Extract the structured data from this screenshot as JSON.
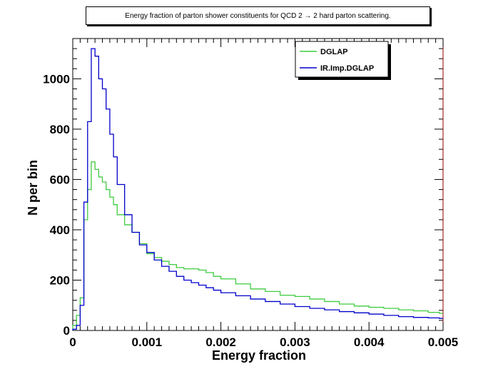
{
  "chart_data": {
    "type": "line",
    "title": "Energy fraction of parton shower constituents for QCD 2 → 2 hard parton scattering.",
    "xlabel": "Energy fraction",
    "ylabel": "N per bin",
    "xlim": [
      0,
      0.005
    ],
    "ylim": [
      0,
      1160
    ],
    "xticks": [
      "0",
      "0.001",
      "0.002",
      "0.003",
      "0.004",
      "0.005"
    ],
    "xtick_values": [
      0,
      0.001,
      0.002,
      0.003,
      0.004,
      0.005
    ],
    "yticks": [
      "0",
      "200",
      "400",
      "600",
      "800",
      "1000"
    ],
    "ytick_values": [
      0,
      200,
      400,
      600,
      800,
      1000
    ],
    "legend_position": "top-right",
    "series": [
      {
        "name": "DGLAP",
        "color": "#3fcc3f",
        "x": [
          0,
          5e-05,
          0.0001,
          0.00015,
          0.0002,
          0.00025,
          0.0003,
          0.00035,
          0.0004,
          0.00045,
          0.0005,
          0.00055,
          0.0006,
          0.0007,
          0.0008,
          0.0009,
          0.001,
          0.0011,
          0.0012,
          0.0013,
          0.0014,
          0.0015,
          0.0016,
          0.0017,
          0.0018,
          0.0019,
          0.002,
          0.0022,
          0.0024,
          0.0026,
          0.0028,
          0.003,
          0.0032,
          0.0034,
          0.0036,
          0.0038,
          0.004,
          0.0042,
          0.0044,
          0.0046,
          0.0048,
          0.00495
        ],
        "values": [
          20,
          60,
          130,
          440,
          560,
          670,
          640,
          610,
          590,
          560,
          530,
          500,
          460,
          420,
          390,
          345,
          305,
          290,
          275,
          262,
          250,
          245,
          245,
          240,
          230,
          215,
          205,
          185,
          165,
          155,
          140,
          135,
          125,
          115,
          105,
          97,
          92,
          88,
          82,
          78,
          72,
          68
        ]
      },
      {
        "name": "IR.Imp.DGLAP",
        "color": "#0000cc",
        "x": [
          0,
          5e-05,
          0.0001,
          0.00015,
          0.0002,
          0.00025,
          0.0003,
          0.00035,
          0.0004,
          0.00045,
          0.0005,
          0.00055,
          0.0006,
          0.0007,
          0.0008,
          0.0009,
          0.001,
          0.0011,
          0.0012,
          0.0013,
          0.0014,
          0.0015,
          0.0016,
          0.0017,
          0.0018,
          0.0019,
          0.002,
          0.0022,
          0.0024,
          0.0026,
          0.0028,
          0.003,
          0.0032,
          0.0034,
          0.0036,
          0.0038,
          0.004,
          0.0042,
          0.0044,
          0.0046,
          0.0048,
          0.00495
        ],
        "values": [
          5,
          20,
          100,
          510,
          830,
          1120,
          1090,
          1000,
          960,
          880,
          780,
          690,
          580,
          460,
          390,
          340,
          310,
          280,
          255,
          235,
          215,
          200,
          190,
          180,
          170,
          160,
          150,
          138,
          125,
          115,
          105,
          95,
          88,
          82,
          75,
          70,
          65,
          60,
          55,
          52,
          50,
          48
        ]
      }
    ]
  }
}
